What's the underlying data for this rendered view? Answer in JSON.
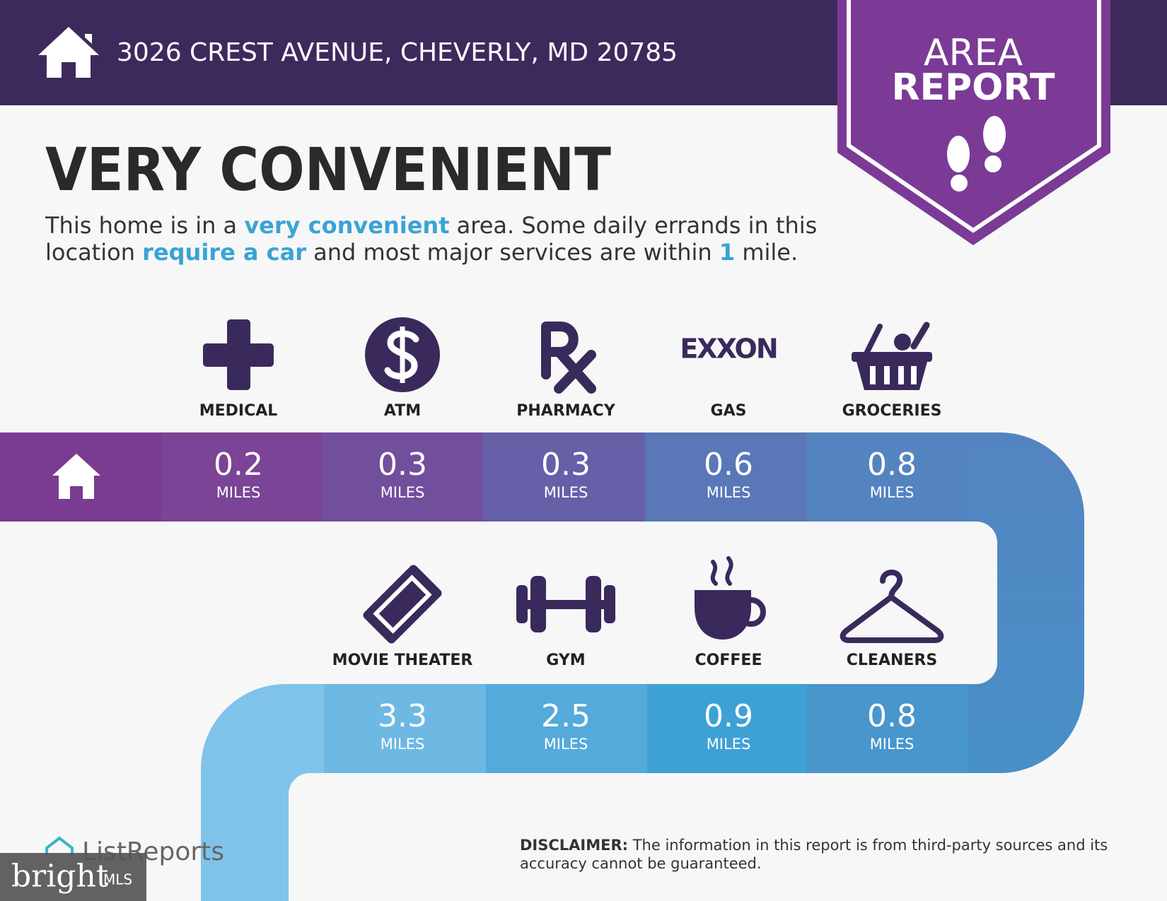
{
  "header": {
    "address": "3026 CREST AVENUE, CHEVERLY, MD 20785"
  },
  "badge": {
    "lines": [
      "AREA",
      "REPORT"
    ]
  },
  "headline": "VERY CONVENIENT",
  "description": {
    "lines": [
      [
        {
          "text": "This home is in a "
        },
        {
          "text": "very convenient",
          "highlight": true
        },
        {
          "text": " area. Some daily errands in this"
        }
      ],
      [
        {
          "text": "location "
        },
        {
          "text": "require a car",
          "highlight": true
        },
        {
          "text": " and most major services are within "
        },
        {
          "text": "1",
          "highlight": true
        },
        {
          "text": " mile."
        }
      ]
    ]
  },
  "amenities": [
    {
      "label": "MEDICAL",
      "distance": "0.2",
      "unit": "MILES"
    },
    {
      "label": "ATM",
      "distance": "0.3",
      "unit": "MILES"
    },
    {
      "label": "PHARMACY",
      "distance": "0.3",
      "unit": "MILES"
    },
    {
      "label": "GAS",
      "brand": "EXXON",
      "distance": "0.6",
      "unit": "MILES"
    },
    {
      "label": "GROCERIES",
      "distance": "0.8",
      "unit": "MILES"
    },
    {
      "label": "MOVIE THEATER",
      "distance": "3.3",
      "unit": "MILES"
    },
    {
      "label": "GYM",
      "distance": "2.5",
      "unit": "MILES"
    },
    {
      "label": "COFFEE",
      "distance": "0.9",
      "unit": "MILES"
    },
    {
      "label": "CLEANERS",
      "distance": "0.8",
      "unit": "MILES"
    }
  ],
  "footer": {
    "brand": "ListReports",
    "watermark": "bright",
    "watermark_suffix": "MLS",
    "disclaimer": {
      "label": "DISCLAIMER:",
      "lines": [
        " The information in this report is from third-party sources and its",
        "accuracy cannot be guaranteed."
      ]
    }
  }
}
